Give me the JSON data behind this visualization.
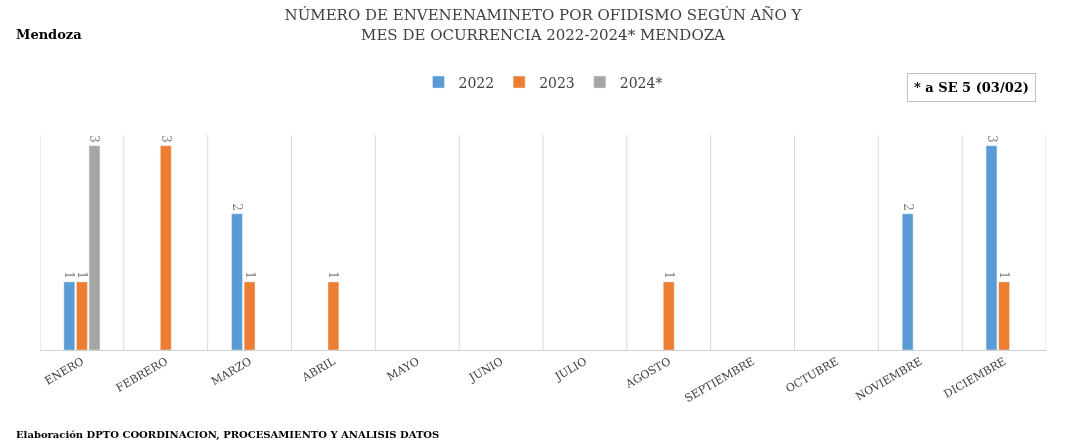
{
  "chart_data": {
    "type": "bar",
    "title": "NÚMERO DE ENVENENAMINETO POR OFIDISMO SEGÚN AÑO Y MES DE OCURRENCIA 2022-2024* MENDOZA",
    "categories": [
      "ENERO",
      "FEBRERO",
      "MARZO",
      "ABRIL",
      "MAYO",
      "JUNIO",
      "JULIO",
      "AGOSTO",
      "SEPTIEMBRE",
      "OCTUBRE",
      "NOVIEMBRE",
      "DICIEMBRE"
    ],
    "series": [
      {
        "name": "2022",
        "color": "#5b9bd5",
        "values": [
          1,
          null,
          2,
          null,
          null,
          null,
          null,
          null,
          null,
          null,
          2,
          3
        ]
      },
      {
        "name": "2023",
        "color": "#ed7d31",
        "values": [
          1,
          3,
          1,
          1,
          null,
          null,
          null,
          1,
          null,
          null,
          null,
          1
        ]
      },
      {
        "name": "2024*",
        "color": "#a5a5a5",
        "values": [
          3,
          null,
          null,
          null,
          null,
          null,
          null,
          null,
          null,
          null,
          null,
          null
        ]
      }
    ],
    "data_labels": true,
    "grid": "x",
    "legend": "top",
    "annotations": [
      "Mendoza",
      "* a SE 5 (03/02)",
      "Elaboración DPTO COORDINACION, PROCESAMIENTO Y ANALISIS DATOS"
    ]
  }
}
